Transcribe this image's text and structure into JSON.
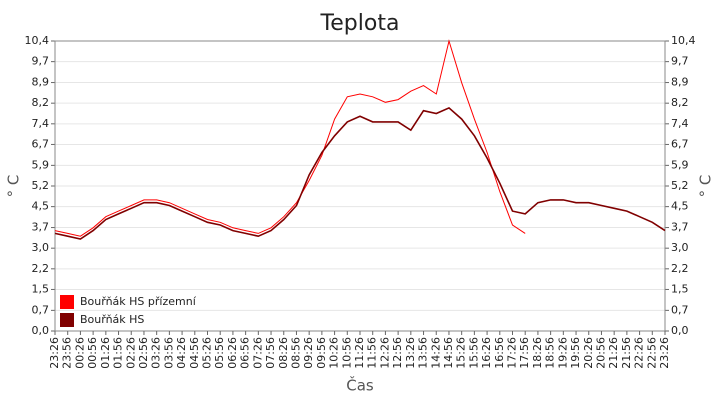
{
  "chart_data": {
    "type": "line",
    "title": "Teplota",
    "xlabel": "Čas",
    "ylabel": "° C",
    "categories": [
      "23:26",
      "23:56",
      "00:26",
      "00:56",
      "01:26",
      "01:56",
      "02:26",
      "02:56",
      "03:26",
      "03:56",
      "04:26",
      "04:56",
      "05:26",
      "05:56",
      "06:26",
      "06:56",
      "07:26",
      "07:56",
      "08:26",
      "08:56",
      "09:26",
      "09:56",
      "10:26",
      "10:56",
      "11:26",
      "11:56",
      "12:26",
      "12:56",
      "13:26",
      "13:56",
      "14:26",
      "14:56",
      "15:26",
      "15:56",
      "16:26",
      "16:56",
      "17:26",
      "17:56",
      "18:26",
      "18:56",
      "19:26",
      "19:56",
      "20:26",
      "20:56",
      "21:26",
      "21:56",
      "22:26",
      "22:56",
      "23:26"
    ],
    "series": [
      {
        "name": "Bouřňák HS přízemní",
        "color": "#ff0000",
        "values": [
          3.6,
          3.5,
          3.4,
          3.7,
          4.1,
          4.3,
          4.5,
          4.7,
          4.7,
          4.6,
          4.4,
          4.2,
          4.0,
          3.9,
          3.7,
          3.6,
          3.5,
          3.7,
          4.1,
          4.6,
          5.4,
          6.3,
          7.6,
          8.4,
          8.5,
          8.4,
          8.2,
          8.3,
          8.6,
          8.8,
          8.5,
          10.4,
          8.9,
          7.6,
          6.4,
          5.0,
          3.8,
          3.5,
          null,
          null,
          null,
          null,
          null,
          null,
          null,
          null,
          null,
          null,
          null
        ]
      },
      {
        "name": "Bouřňák HS",
        "color": "#800000",
        "values": [
          3.5,
          3.4,
          3.3,
          3.6,
          4.0,
          4.2,
          4.4,
          4.6,
          4.6,
          4.5,
          4.3,
          4.1,
          3.9,
          3.8,
          3.6,
          3.5,
          3.4,
          3.6,
          4.0,
          4.5,
          5.6,
          6.4,
          7.0,
          7.5,
          7.7,
          7.5,
          7.5,
          7.5,
          7.2,
          7.9,
          7.8,
          8.0,
          7.6,
          7.0,
          6.2,
          5.3,
          4.3,
          4.2,
          4.6,
          4.7,
          4.7,
          4.6,
          4.6,
          4.5,
          4.4,
          4.3,
          4.1,
          3.9,
          3.6
        ]
      }
    ],
    "ylim": [
      0,
      10.4
    ],
    "yticks": [
      {
        "value": 0,
        "label": "0,0"
      },
      {
        "value": 0.74,
        "label": "0,7"
      },
      {
        "value": 1.49,
        "label": "1,5"
      },
      {
        "value": 2.23,
        "label": "2,2"
      },
      {
        "value": 2.97,
        "label": "3,0"
      },
      {
        "value": 3.71,
        "label": "3,7"
      },
      {
        "value": 4.46,
        "label": "4,5"
      },
      {
        "value": 5.2,
        "label": "5,2"
      },
      {
        "value": 5.94,
        "label": "5,9"
      },
      {
        "value": 6.69,
        "label": "6,7"
      },
      {
        "value": 7.43,
        "label": "7,4"
      },
      {
        "value": 8.17,
        "label": "8,2"
      },
      {
        "value": 8.91,
        "label": "8,9"
      },
      {
        "value": 9.66,
        "label": "9,7"
      },
      {
        "value": 10.4,
        "label": "10,4"
      }
    ],
    "grid": true
  }
}
